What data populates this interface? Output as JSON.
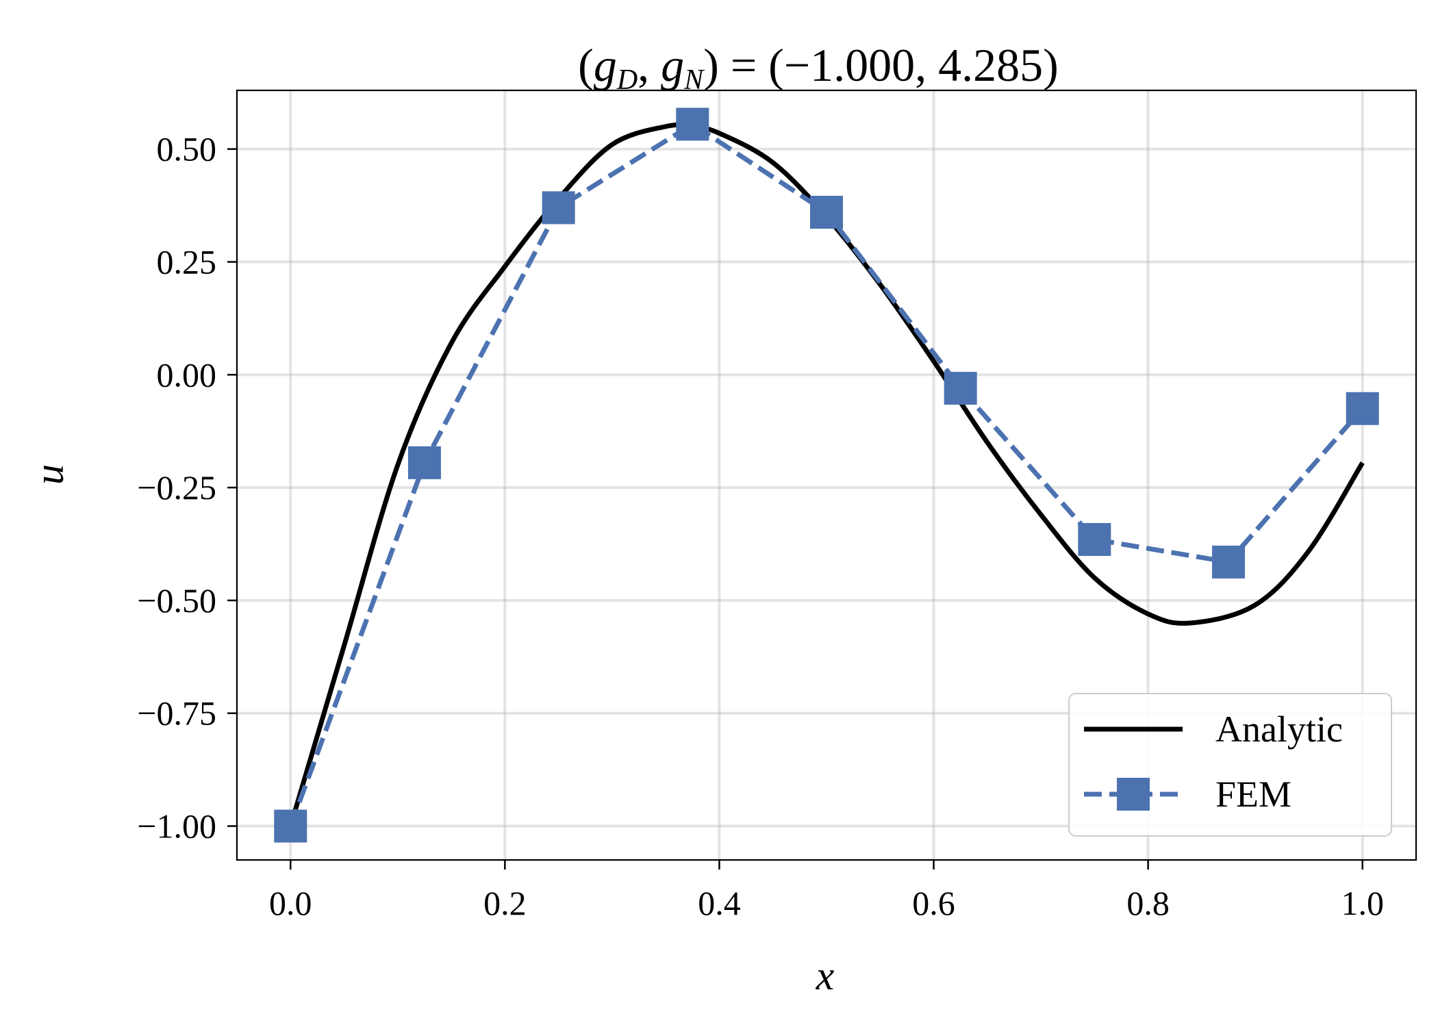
{
  "chart_data": {
    "type": "line",
    "title": "(g_D, g_N) = (−1.000, 4.285)",
    "xlabel": "x",
    "ylabel": "u",
    "xlim": [
      -0.05,
      1.05
    ],
    "ylim": [
      -1.075,
      0.63
    ],
    "x_ticks": [
      0.0,
      0.2,
      0.4,
      0.6,
      0.8,
      1.0
    ],
    "x_tick_labels": [
      "0.0",
      "0.2",
      "0.4",
      "0.6",
      "0.8",
      "1.0"
    ],
    "y_ticks": [
      0.5,
      0.25,
      0.0,
      -0.25,
      -0.5,
      -0.75,
      -1.0
    ],
    "y_tick_labels": [
      "0.50",
      "0.25",
      "0.00",
      "−0.25",
      "−0.50",
      "−0.75",
      "−1.00"
    ],
    "grid": true,
    "legend_position": "lower-right",
    "series": [
      {
        "name": "Analytic",
        "style": "solid",
        "color": "#000000",
        "x": [
          0.0,
          0.05,
          0.1,
          0.15,
          0.2,
          0.25,
          0.3,
          0.35,
          0.375,
          0.4,
          0.45,
          0.5,
          0.55,
          0.6,
          0.65,
          0.7,
          0.75,
          0.8,
          0.84,
          0.9,
          0.95,
          1.0
        ],
        "values": [
          -1.0,
          -0.6,
          -0.2,
          0.07,
          0.24,
          0.39,
          0.51,
          0.55,
          0.55,
          0.535,
          0.47,
          0.35,
          0.2,
          0.03,
          -0.15,
          -0.31,
          -0.45,
          -0.53,
          -0.55,
          -0.51,
          -0.39,
          -0.195
        ]
      },
      {
        "name": "FEM",
        "style": "dashed",
        "marker": "square",
        "color": "#4c72b0",
        "x": [
          0.0,
          0.125,
          0.25,
          0.375,
          0.5,
          0.625,
          0.75,
          0.875,
          1.0
        ],
        "values": [
          -1.0,
          -0.195,
          0.37,
          0.555,
          0.36,
          -0.03,
          -0.365,
          -0.415,
          -0.075
        ]
      }
    ]
  }
}
